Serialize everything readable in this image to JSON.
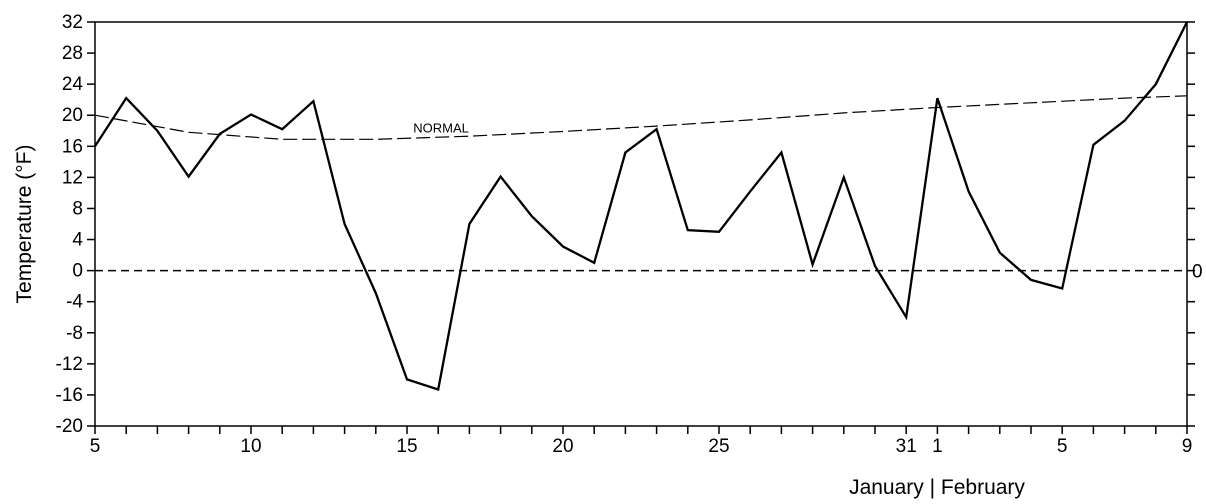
{
  "chart_data": {
    "type": "line",
    "ylabel": "Temperature (°F)",
    "xlabel": "January | February",
    "ylim": [
      -20,
      32
    ],
    "y_ticks": [
      "32",
      "28",
      "24",
      "20",
      "16",
      "12",
      "8",
      "4",
      "0",
      "-4",
      "-8",
      "-12",
      "-16",
      "-20"
    ],
    "y_tick_values": [
      32,
      28,
      24,
      20,
      16,
      12,
      8,
      4,
      0,
      -4,
      -8,
      -12,
      -16,
      -20
    ],
    "right_axis_label": "0",
    "x_ticks": [
      {
        "label": "5",
        "day": 0
      },
      {
        "label": "10",
        "day": 5
      },
      {
        "label": "15",
        "day": 10
      },
      {
        "label": "20",
        "day": 15
      },
      {
        "label": "25",
        "day": 20
      },
      {
        "label": "31",
        "day": 26
      },
      {
        "label": "1",
        "day": 27
      },
      {
        "label": "5",
        "day": 31
      },
      {
        "label": "9",
        "day": 35
      }
    ],
    "series": [
      {
        "style": "solid",
        "x": [
          0,
          1,
          2,
          3,
          4,
          5,
          6,
          7,
          8,
          9,
          10,
          11,
          12,
          13,
          14,
          15,
          16,
          17,
          18,
          19,
          20,
          21,
          22,
          23,
          24,
          25,
          26,
          27,
          28,
          29,
          30,
          31,
          32,
          33,
          34,
          35
        ],
        "values": [
          16,
          22.2,
          18,
          12.1,
          17.6,
          20.1,
          18.2,
          21.8,
          6,
          -2.9,
          -14,
          -15.3,
          6,
          12.1,
          7,
          3.1,
          1,
          15.2,
          18.2,
          5.2,
          5,
          10.2,
          15.2,
          0.8,
          12,
          0.6,
          -6,
          22.2,
          10.2,
          2.3,
          -1.2,
          -2.3,
          16.2,
          19.3,
          24,
          32
        ]
      },
      {
        "name": "NORMAL",
        "style": "dashed",
        "x": [
          0,
          3,
          6,
          9,
          12,
          15,
          18,
          21,
          24,
          27,
          30,
          33,
          35
        ],
        "values": [
          20,
          17.8,
          16.9,
          16.9,
          17.3,
          17.9,
          18.6,
          19.4,
          20.3,
          21,
          21.6,
          22.2,
          22.5
        ]
      }
    ],
    "reference_line": {
      "y": 0,
      "style": "dashed"
    }
  }
}
